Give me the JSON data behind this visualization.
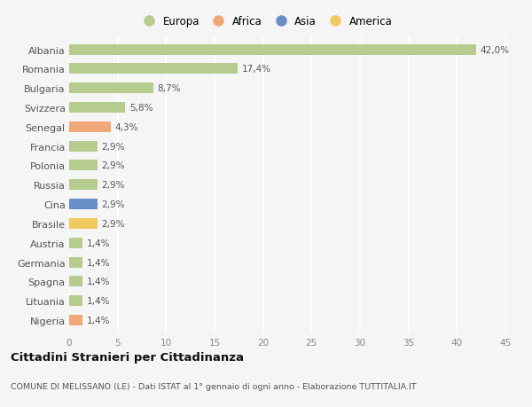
{
  "countries": [
    "Albania",
    "Romania",
    "Bulgaria",
    "Svizzera",
    "Senegal",
    "Francia",
    "Polonia",
    "Russia",
    "Cina",
    "Brasile",
    "Austria",
    "Germania",
    "Spagna",
    "Lituania",
    "Nigeria"
  ],
  "values": [
    42.0,
    17.4,
    8.7,
    5.8,
    4.3,
    2.9,
    2.9,
    2.9,
    2.9,
    2.9,
    1.4,
    1.4,
    1.4,
    1.4,
    1.4
  ],
  "labels": [
    "42,0%",
    "17,4%",
    "8,7%",
    "5,8%",
    "4,3%",
    "2,9%",
    "2,9%",
    "2,9%",
    "2,9%",
    "2,9%",
    "1,4%",
    "1,4%",
    "1,4%",
    "1,4%",
    "1,4%"
  ],
  "continents": [
    "Europa",
    "Europa",
    "Europa",
    "Europa",
    "Africa",
    "Europa",
    "Europa",
    "Europa",
    "Asia",
    "America",
    "Europa",
    "Europa",
    "Europa",
    "Europa",
    "Africa"
  ],
  "colors": {
    "Europa": "#b5cc8e",
    "Africa": "#f0a878",
    "Asia": "#6a8fc8",
    "America": "#f0c860"
  },
  "xlim": [
    0,
    45
  ],
  "xticks": [
    0,
    5,
    10,
    15,
    20,
    25,
    30,
    35,
    40,
    45
  ],
  "title": "Cittadini Stranieri per Cittadinanza",
  "subtitle": "COMUNE DI MELISSANO (LE) - Dati ISTAT al 1° gennaio di ogni anno - Elaborazione TUTTITALIA.IT",
  "bg_color": "#f5f5f5",
  "grid_color": "#ffffff",
  "bar_height": 0.55,
  "legend_order": [
    "Europa",
    "Africa",
    "Asia",
    "America"
  ]
}
